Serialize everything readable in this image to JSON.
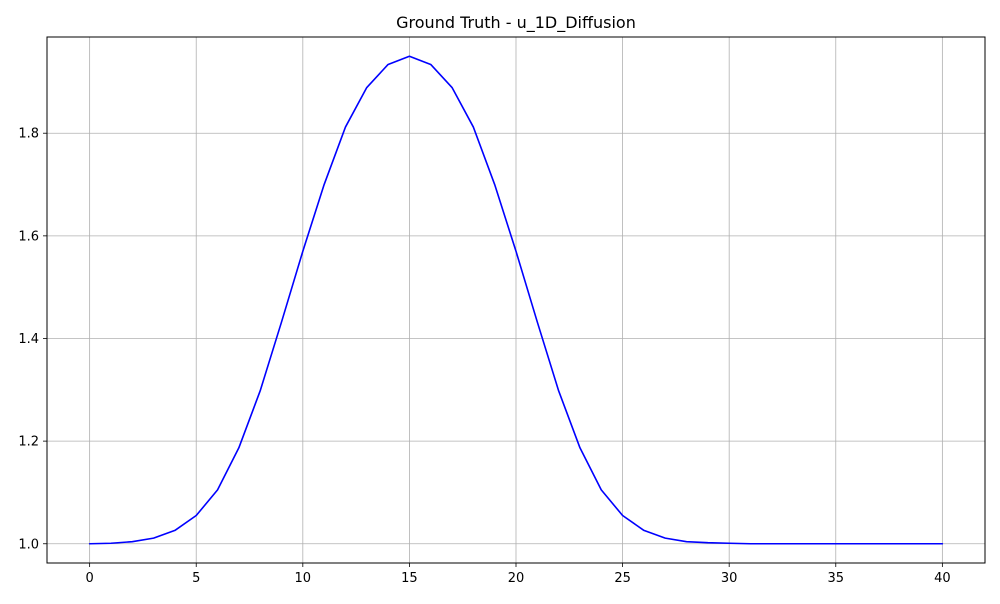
{
  "chart_data": {
    "type": "line",
    "title": "Ground Truth - u_1D_Diffusion",
    "xlabel": "",
    "ylabel": "",
    "xlim": [
      -2,
      42
    ],
    "ylim": [
      0.9625,
      1.9875
    ],
    "xticks": [
      0,
      5,
      10,
      15,
      20,
      25,
      30,
      35,
      40
    ],
    "xtick_labels": [
      "0",
      "5",
      "10",
      "15",
      "20",
      "25",
      "30",
      "35",
      "40"
    ],
    "yticks": [
      1.0,
      1.2,
      1.4,
      1.6,
      1.8
    ],
    "ytick_labels": [
      "1.0",
      "1.2",
      "1.4",
      "1.6",
      "1.8"
    ],
    "grid": true,
    "legend": "none",
    "series": [
      {
        "color": "#0000ff",
        "x": [
          0,
          1,
          2,
          3,
          4,
          5,
          6,
          7,
          8,
          9,
          10,
          11,
          12,
          13,
          14,
          15,
          16,
          17,
          18,
          19,
          20,
          21,
          22,
          23,
          24,
          25,
          26,
          27,
          28,
          29,
          30,
          31,
          32,
          33,
          34,
          35,
          36,
          37,
          38,
          39,
          40
        ],
        "values": [
          1.0,
          1.001,
          1.004,
          1.011,
          1.026,
          1.055,
          1.105,
          1.187,
          1.298,
          1.432,
          1.57,
          1.7,
          1.812,
          1.889,
          1.934,
          1.95,
          1.934,
          1.889,
          1.812,
          1.7,
          1.57,
          1.432,
          1.298,
          1.187,
          1.105,
          1.055,
          1.026,
          1.011,
          1.004,
          1.002,
          1.001,
          1.0,
          1.0,
          1.0,
          1.0,
          1.0,
          1.0,
          1.0,
          1.0,
          1.0,
          1.0
        ]
      }
    ]
  }
}
